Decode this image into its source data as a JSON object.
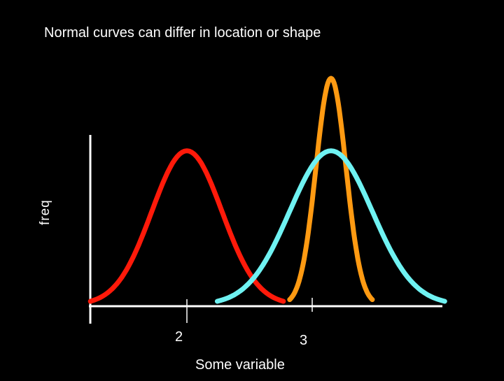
{
  "title": "Normal curves can differ in location or shape",
  "colors": {
    "background": "#000000",
    "axis": "#ffffff",
    "red": "#ff1a0a",
    "orange": "#ff9a12",
    "cyan": "#6ff2f2"
  },
  "chart_data": {
    "type": "line",
    "title": "Normal curves can differ in location or shape",
    "xlabel": "Some variable",
    "ylabel": "freq",
    "x_ticks": [
      "2",
      "3"
    ],
    "grid": false,
    "legend": "none",
    "series": [
      {
        "color": "#ff1a0a",
        "mean": 2.0,
        "sd": 0.28,
        "peak": 0.68
      },
      {
        "color": "#ff9a12",
        "mean": 3.15,
        "sd": 0.12,
        "peak": 1.0
      },
      {
        "color": "#6ff2f2",
        "mean": 3.15,
        "sd": 0.33,
        "peak": 0.68
      }
    ]
  }
}
